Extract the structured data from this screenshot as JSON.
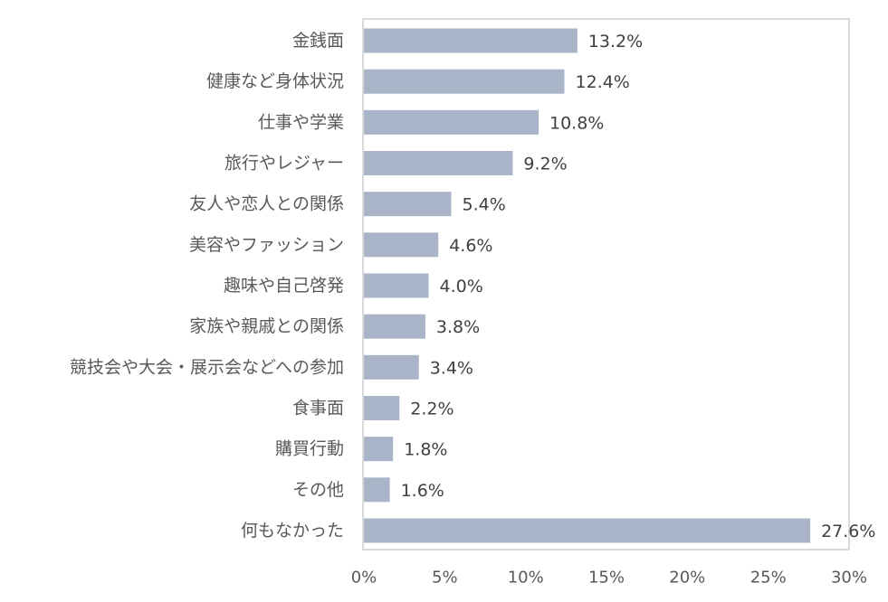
{
  "chart_data": {
    "type": "bar",
    "orientation": "horizontal",
    "categories": [
      "金銭面",
      "健康など身体状況",
      "仕事や学業",
      "旅行やレジャー",
      "友人や恋人との関係",
      "美容やファッション",
      "趣味や自己啓発",
      "家族や親戚との関係",
      "競技会や大会・展示会などへの参加",
      "食事面",
      "購買行動",
      "その他",
      "何もなかった"
    ],
    "values": [
      13.2,
      12.4,
      10.8,
      9.2,
      5.4,
      4.6,
      4.0,
      3.8,
      3.4,
      2.2,
      1.8,
      1.6,
      27.6
    ],
    "value_labels": [
      "13.2%",
      "12.4%",
      "10.8%",
      "9.2%",
      "5.4%",
      "4.6%",
      "4.0%",
      "3.8%",
      "3.4%",
      "2.2%",
      "1.8%",
      "1.6%",
      "27.6%"
    ],
    "xlim": [
      0,
      30
    ],
    "x_ticks": [
      0,
      5,
      10,
      15,
      20,
      25,
      30
    ],
    "x_tick_labels": [
      "0%",
      "5%",
      "10%",
      "15%",
      "20%",
      "25%",
      "30%"
    ],
    "grid": false,
    "bar_color": "#aab4c8",
    "frame_color": "#d9d9d9"
  }
}
